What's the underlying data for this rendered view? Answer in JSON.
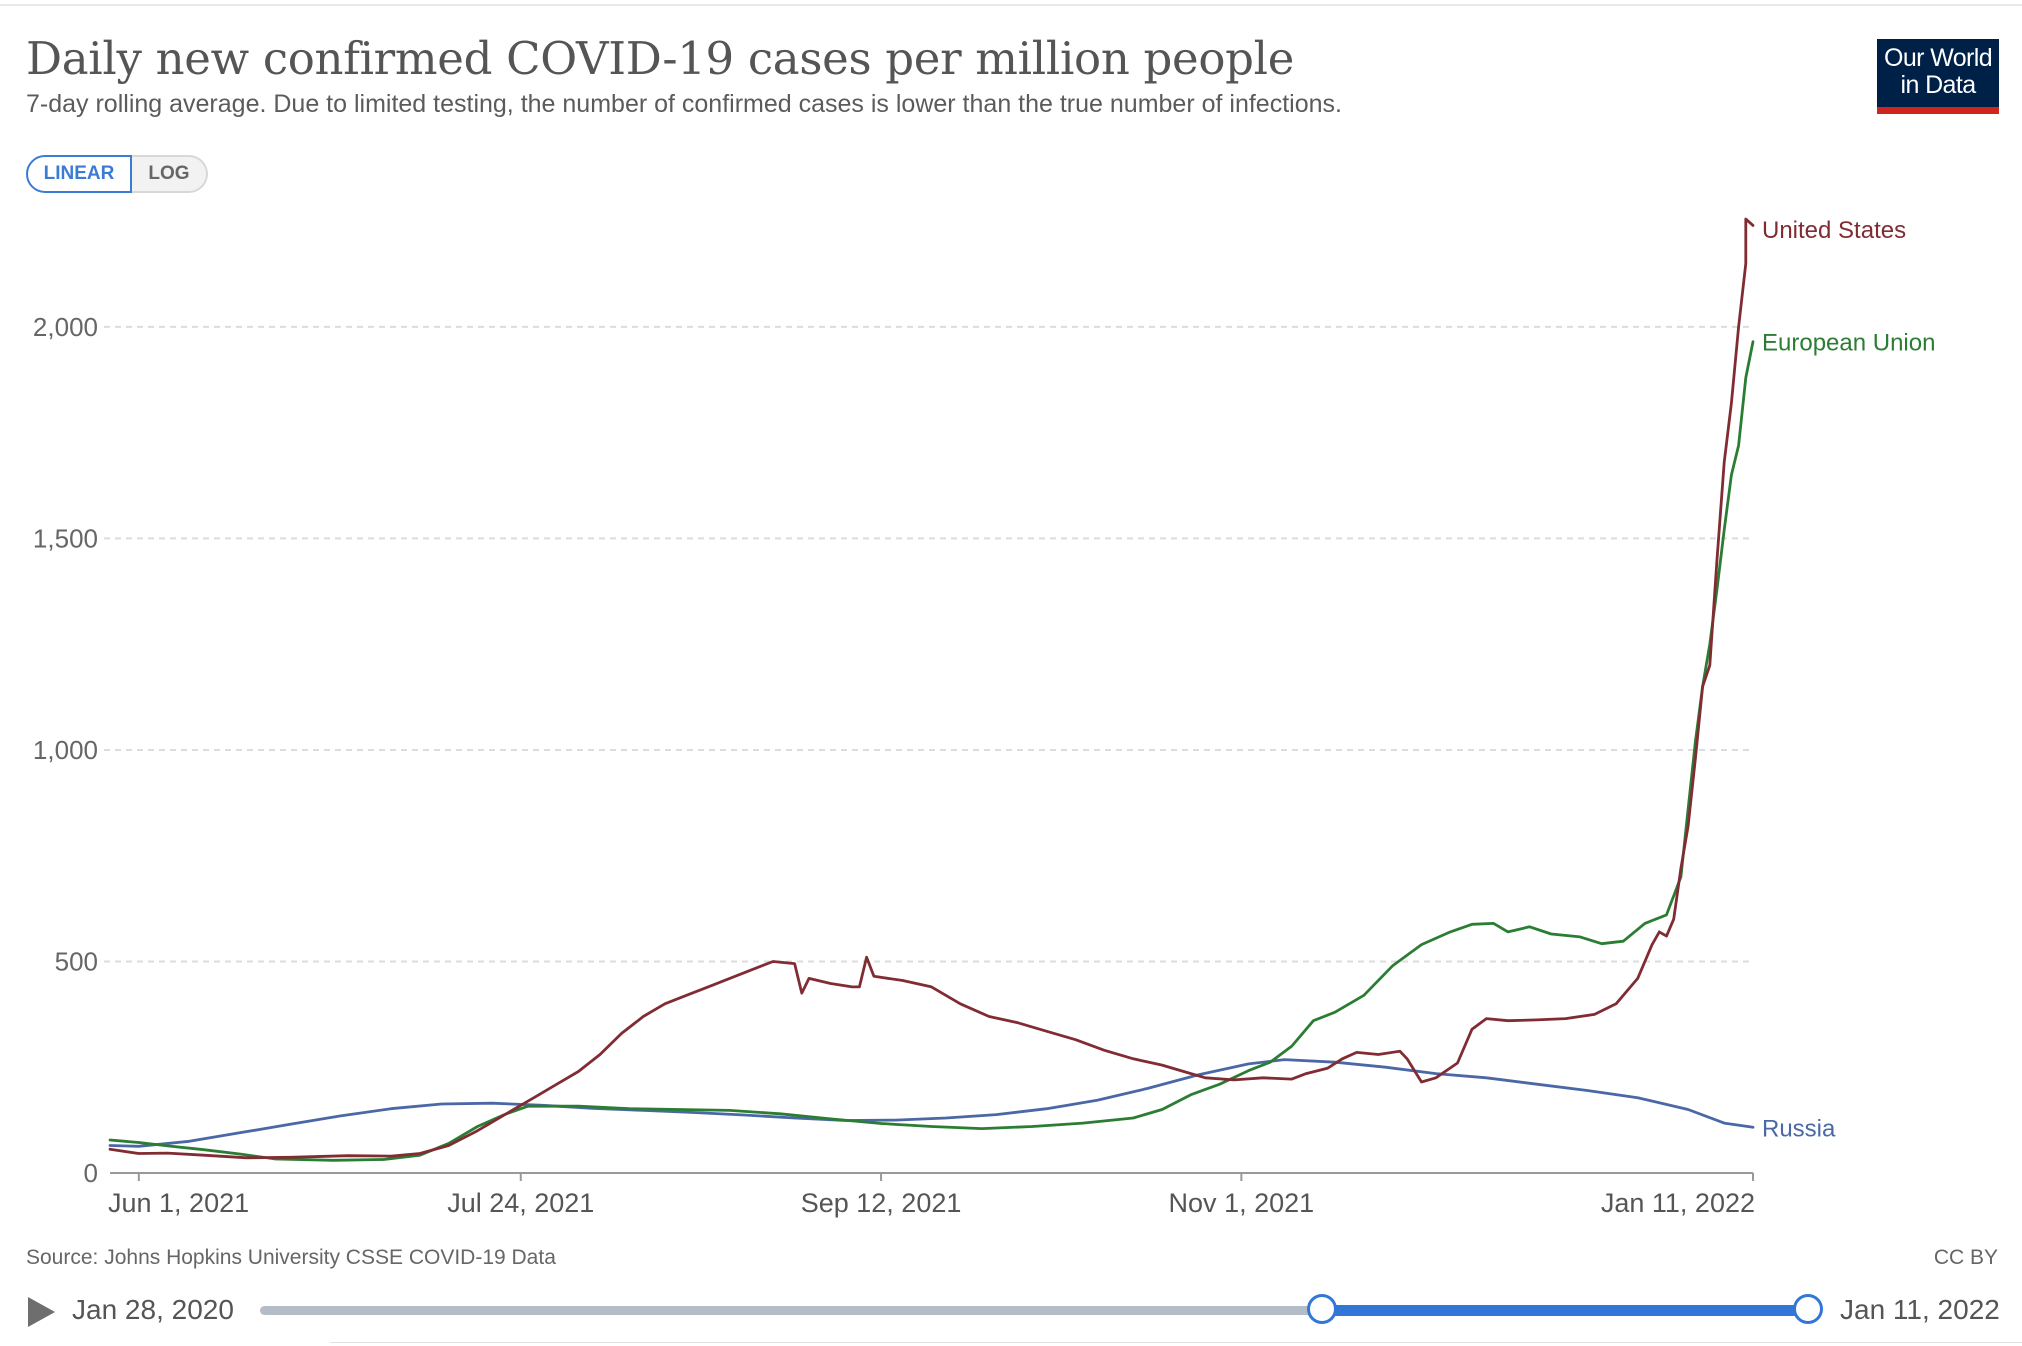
{
  "header": {
    "title": "Daily new confirmed COVID-19 cases per million people",
    "subtitle": "7-day rolling average. Due to limited testing, the number of confirmed cases is lower than the true number of infections.",
    "logo_line1": "Our World",
    "logo_line2": "in Data"
  },
  "scale_toggle": {
    "linear_label": "LINEAR",
    "log_label": "LOG",
    "selected": "LINEAR"
  },
  "footer": {
    "source": "Source: Johns Hopkins University CSSE COVID-19 Data",
    "license": "CC BY"
  },
  "timeline": {
    "start_label": "Jan 28, 2020",
    "end_label": "Jan 11, 2022",
    "selected_range_start": "Jun 1, 2021",
    "selected_range_end": "Jan 11, 2022"
  },
  "colors": {
    "united_states": "#812c33",
    "european_union": "#2b7d33",
    "russia": "#4a68a6",
    "accent": "#3277d7",
    "brand_navy": "#002147",
    "brand_red": "#ce261e"
  },
  "chart_data": {
    "type": "line",
    "title": "Daily new confirmed COVID-19 cases per million people",
    "subtitle": "7-day rolling average. Due to limited testing, the number of confirmed cases is lower than the true number of infections.",
    "x_domain": [
      "2021-05-28",
      "2022-01-11"
    ],
    "ylim": [
      0,
      2300
    ],
    "y_ticks": [
      0,
      500,
      1000,
      1500,
      2000
    ],
    "y_tick_labels": [
      "0",
      "500",
      "1,000",
      "1,500",
      "2,000"
    ],
    "x_ticks": [
      "2021-06-01",
      "2021-07-24",
      "2021-09-12",
      "2021-11-01",
      "2022-01-11"
    ],
    "x_tick_labels": [
      "Jun 1, 2021",
      "Jul 24, 2021",
      "Sep 12, 2021",
      "Nov 1, 2021",
      "Jan 11, 2022"
    ],
    "grid": "horizontal dashed",
    "legend": "inline labels at line ends (right)",
    "series": [
      {
        "name": "United States",
        "color_key": "united_states",
        "points": [
          [
            "2021-05-28",
            56
          ],
          [
            "2021-06-01",
            46
          ],
          [
            "2021-06-05",
            47
          ],
          [
            "2021-06-10",
            42
          ],
          [
            "2021-06-16",
            36
          ],
          [
            "2021-06-22",
            37
          ],
          [
            "2021-06-30",
            41
          ],
          [
            "2021-07-06",
            40
          ],
          [
            "2021-07-10",
            46
          ],
          [
            "2021-07-14",
            65
          ],
          [
            "2021-07-18",
            100
          ],
          [
            "2021-07-22",
            140
          ],
          [
            "2021-07-26",
            180
          ],
          [
            "2021-07-29",
            210
          ],
          [
            "2021-08-01",
            240
          ],
          [
            "2021-08-04",
            280
          ],
          [
            "2021-08-07",
            330
          ],
          [
            "2021-08-10",
            370
          ],
          [
            "2021-08-13",
            400
          ],
          [
            "2021-08-16",
            420
          ],
          [
            "2021-08-19",
            440
          ],
          [
            "2021-08-22",
            460
          ],
          [
            "2021-08-25",
            480
          ],
          [
            "2021-08-28",
            500
          ],
          [
            "2021-08-31",
            495
          ],
          [
            "2021-09-01",
            425
          ],
          [
            "2021-09-02",
            460
          ],
          [
            "2021-09-05",
            448
          ],
          [
            "2021-09-08",
            440
          ],
          [
            "2021-09-09",
            440
          ],
          [
            "2021-09-10",
            510
          ],
          [
            "2021-09-11",
            465
          ],
          [
            "2021-09-15",
            455
          ],
          [
            "2021-09-19",
            440
          ],
          [
            "2021-09-23",
            400
          ],
          [
            "2021-09-27",
            370
          ],
          [
            "2021-10-01",
            355
          ],
          [
            "2021-10-05",
            335
          ],
          [
            "2021-10-09",
            315
          ],
          [
            "2021-10-13",
            290
          ],
          [
            "2021-10-17",
            270
          ],
          [
            "2021-10-21",
            255
          ],
          [
            "2021-10-24",
            240
          ],
          [
            "2021-10-27",
            225
          ],
          [
            "2021-10-31",
            220
          ],
          [
            "2021-11-04",
            225
          ],
          [
            "2021-11-08",
            222
          ],
          [
            "2021-11-10",
            235
          ],
          [
            "2021-11-13",
            248
          ],
          [
            "2021-11-15",
            270
          ],
          [
            "2021-11-17",
            285
          ],
          [
            "2021-11-20",
            280
          ],
          [
            "2021-11-23",
            288
          ],
          [
            "2021-11-24",
            270
          ],
          [
            "2021-11-26",
            215
          ],
          [
            "2021-11-28",
            225
          ],
          [
            "2021-12-01",
            260
          ],
          [
            "2021-12-03",
            340
          ],
          [
            "2021-12-05",
            365
          ],
          [
            "2021-12-08",
            360
          ],
          [
            "2021-12-12",
            362
          ],
          [
            "2021-12-16",
            365
          ],
          [
            "2021-12-20",
            375
          ],
          [
            "2021-12-23",
            400
          ],
          [
            "2021-12-26",
            460
          ],
          [
            "2021-12-28",
            540
          ],
          [
            "2021-12-29",
            570
          ],
          [
            "2021-12-30",
            560
          ],
          [
            "2021-12-31",
            600
          ],
          [
            "2022-01-01",
            720
          ],
          [
            "2022-01-02",
            820
          ],
          [
            "2022-01-03",
            980
          ],
          [
            "2022-01-04",
            1150
          ],
          [
            "2022-01-05",
            1200
          ],
          [
            "2022-01-06",
            1450
          ],
          [
            "2022-01-07",
            1680
          ],
          [
            "2022-01-08",
            1820
          ],
          [
            "2022-01-09",
            2000
          ],
          [
            "2022-01-10",
            2150
          ],
          [
            "2022-01-10",
            2255
          ],
          [
            "2022-01-11",
            2240
          ]
        ]
      },
      {
        "name": "European Union",
        "color_key": "european_union",
        "points": [
          [
            "2021-05-28",
            78
          ],
          [
            "2021-06-01",
            72
          ],
          [
            "2021-06-05",
            64
          ],
          [
            "2021-06-10",
            55
          ],
          [
            "2021-06-15",
            45
          ],
          [
            "2021-06-20",
            33
          ],
          [
            "2021-06-28",
            30
          ],
          [
            "2021-07-05",
            32
          ],
          [
            "2021-07-10",
            42
          ],
          [
            "2021-07-14",
            70
          ],
          [
            "2021-07-18",
            110
          ],
          [
            "2021-07-22",
            140
          ],
          [
            "2021-07-25",
            158
          ],
          [
            "2021-08-01",
            158
          ],
          [
            "2021-08-08",
            152
          ],
          [
            "2021-08-15",
            150
          ],
          [
            "2021-08-22",
            148
          ],
          [
            "2021-08-29",
            140
          ],
          [
            "2021-09-05",
            128
          ],
          [
            "2021-09-12",
            117
          ],
          [
            "2021-09-19",
            110
          ],
          [
            "2021-09-26",
            105
          ],
          [
            "2021-10-03",
            110
          ],
          [
            "2021-10-10",
            118
          ],
          [
            "2021-10-17",
            130
          ],
          [
            "2021-10-21",
            150
          ],
          [
            "2021-10-25",
            185
          ],
          [
            "2021-10-29",
            210
          ],
          [
            "2021-11-02",
            242
          ],
          [
            "2021-11-05",
            262
          ],
          [
            "2021-11-08",
            300
          ],
          [
            "2021-11-11",
            360
          ],
          [
            "2021-11-14",
            380
          ],
          [
            "2021-11-18",
            420
          ],
          [
            "2021-11-22",
            490
          ],
          [
            "2021-11-26",
            540
          ],
          [
            "2021-11-30",
            570
          ],
          [
            "2021-12-03",
            588
          ],
          [
            "2021-12-06",
            590
          ],
          [
            "2021-12-08",
            570
          ],
          [
            "2021-12-11",
            582
          ],
          [
            "2021-12-14",
            565
          ],
          [
            "2021-12-18",
            558
          ],
          [
            "2021-12-21",
            542
          ],
          [
            "2021-12-24",
            548
          ],
          [
            "2021-12-27",
            590
          ],
          [
            "2021-12-30",
            610
          ],
          [
            "2022-01-01",
            700
          ],
          [
            "2022-01-02",
            860
          ],
          [
            "2022-01-03",
            1020
          ],
          [
            "2022-01-04",
            1150
          ],
          [
            "2022-01-05",
            1250
          ],
          [
            "2022-01-06",
            1380
          ],
          [
            "2022-01-07",
            1520
          ],
          [
            "2022-01-08",
            1650
          ],
          [
            "2022-01-09",
            1720
          ],
          [
            "2022-01-10",
            1880
          ],
          [
            "2022-01-11",
            1965
          ]
        ]
      },
      {
        "name": "Russia",
        "color_key": "russia",
        "points": [
          [
            "2021-05-28",
            65
          ],
          [
            "2021-06-01",
            63
          ],
          [
            "2021-06-08",
            75
          ],
          [
            "2021-06-15",
            95
          ],
          [
            "2021-06-22",
            115
          ],
          [
            "2021-06-29",
            135
          ],
          [
            "2021-07-06",
            152
          ],
          [
            "2021-07-13",
            163
          ],
          [
            "2021-07-20",
            165
          ],
          [
            "2021-07-27",
            160
          ],
          [
            "2021-08-03",
            153
          ],
          [
            "2021-08-10",
            148
          ],
          [
            "2021-08-17",
            143
          ],
          [
            "2021-08-24",
            137
          ],
          [
            "2021-08-31",
            130
          ],
          [
            "2021-09-07",
            124
          ],
          [
            "2021-09-14",
            125
          ],
          [
            "2021-09-21",
            130
          ],
          [
            "2021-09-28",
            138
          ],
          [
            "2021-10-05",
            152
          ],
          [
            "2021-10-12",
            172
          ],
          [
            "2021-10-19",
            200
          ],
          [
            "2021-10-26",
            232
          ],
          [
            "2021-11-02",
            258
          ],
          [
            "2021-11-07",
            268
          ],
          [
            "2021-11-14",
            262
          ],
          [
            "2021-11-21",
            250
          ],
          [
            "2021-11-28",
            235
          ],
          [
            "2021-12-05",
            225
          ],
          [
            "2021-12-12",
            210
          ],
          [
            "2021-12-19",
            195
          ],
          [
            "2021-12-26",
            178
          ],
          [
            "2022-01-02",
            150
          ],
          [
            "2022-01-07",
            118
          ],
          [
            "2022-01-11",
            108
          ]
        ]
      }
    ]
  }
}
